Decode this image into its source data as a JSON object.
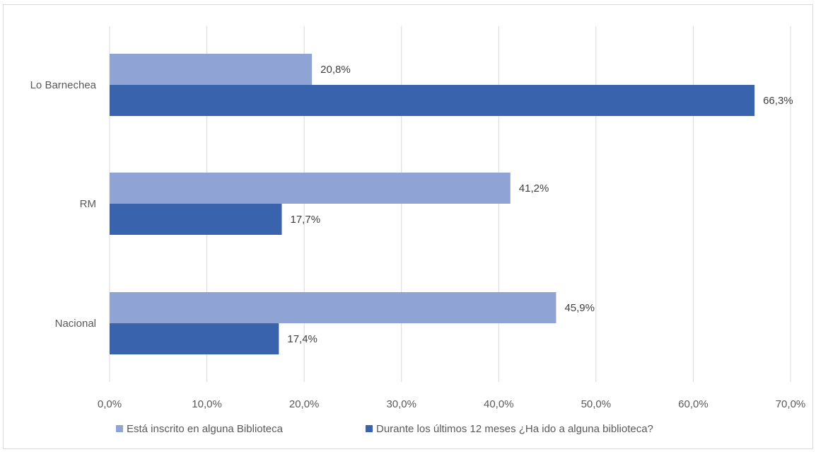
{
  "chart_data": {
    "type": "bar",
    "orientation": "horizontal",
    "categories": [
      "Lo Barnechea",
      "RM",
      "Nacional"
    ],
    "series": [
      {
        "name": "Está inscrito en alguna Biblioteca",
        "color": "#8FA3D4",
        "values": [
          20.8,
          41.2,
          45.9
        ],
        "labels": [
          "20,8%",
          "41,2%",
          "45,9%"
        ]
      },
      {
        "name": "Durante los últimos 12 meses ¿Ha ido a alguna biblioteca?",
        "color": "#3A63AE",
        "values": [
          66.3,
          17.7,
          17.4
        ],
        "labels": [
          "66,3%",
          "17,7%",
          "17,4%"
        ]
      }
    ],
    "xlim": [
      0,
      70
    ],
    "xticks": [
      0,
      10,
      20,
      30,
      40,
      50,
      60,
      70
    ],
    "xtick_labels": [
      "0,0%",
      "10,0%",
      "20,0%",
      "30,0%",
      "40,0%",
      "50,0%",
      "60,0%",
      "70,0%"
    ],
    "title": "",
    "xlabel": "",
    "ylabel": "",
    "grid": true,
    "legend_position": "bottom",
    "gridline_color": "#d9d9d9"
  }
}
